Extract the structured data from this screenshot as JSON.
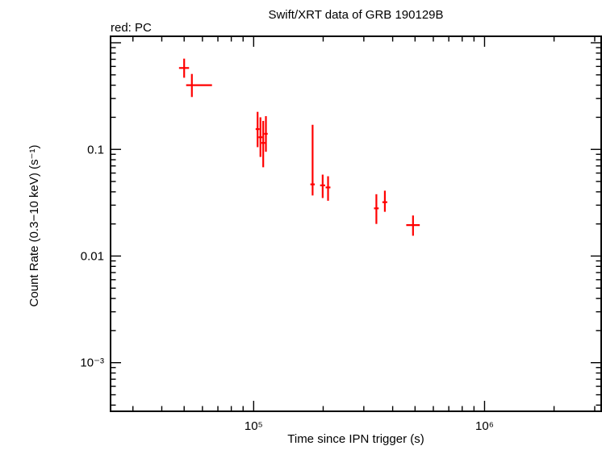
{
  "page": {
    "background": "#ffffff"
  },
  "chart_data": {
    "type": "scatter",
    "title": "Swift/XRT data of GRB 190129B",
    "mode_label": "red: PC",
    "xlabel": "Time since IPN trigger (s)",
    "ylabel": "Count Rate (0.3−10 keV) (s⁻¹)",
    "x_scale": "log",
    "y_scale": "log",
    "xlim": [
      24000,
      3200000
    ],
    "ylim": [
      0.00035,
      1.15
    ],
    "grid": false,
    "legend": "none",
    "series_name": "PC mode",
    "series_color": "#ff0000",
    "axis_color": "#000000",
    "x_ticks": [
      {
        "value": 100000,
        "label": "10⁵"
      },
      {
        "value": 1000000,
        "label": "10⁶"
      }
    ],
    "y_ticks": [
      {
        "value": 0.1,
        "label": "0.1"
      },
      {
        "value": 0.01,
        "label": "0.01"
      },
      {
        "value": 0.001,
        "label": "10⁻³"
      }
    ],
    "points": [
      {
        "x": 50000,
        "x_lo": 47500,
        "x_hi": 52500,
        "y": 0.58,
        "y_lo": 0.47,
        "y_hi": 0.71
      },
      {
        "x": 54000,
        "x_lo": 51000,
        "x_hi": 66000,
        "y": 0.4,
        "y_lo": 0.31,
        "y_hi": 0.51
      },
      {
        "x": 104000,
        "x_lo": 102000,
        "x_hi": 106000,
        "y": 0.155,
        "y_lo": 0.105,
        "y_hi": 0.225
      },
      {
        "x": 107000,
        "x_lo": 105000,
        "x_hi": 109000,
        "y": 0.13,
        "y_lo": 0.085,
        "y_hi": 0.2
      },
      {
        "x": 110000,
        "x_lo": 108000,
        "x_hi": 112000,
        "y": 0.115,
        "y_lo": 0.068,
        "y_hi": 0.185
      },
      {
        "x": 113000,
        "x_lo": 111000,
        "x_hi": 115000,
        "y": 0.14,
        "y_lo": 0.095,
        "y_hi": 0.205
      },
      {
        "x": 180000,
        "x_lo": 176000,
        "x_hi": 184000,
        "y": 0.047,
        "y_lo": 0.037,
        "y_hi": 0.17
      },
      {
        "x": 199000,
        "x_lo": 194000,
        "x_hi": 204000,
        "y": 0.046,
        "y_lo": 0.035,
        "y_hi": 0.058
      },
      {
        "x": 210000,
        "x_lo": 205000,
        "x_hi": 215000,
        "y": 0.044,
        "y_lo": 0.033,
        "y_hi": 0.056
      },
      {
        "x": 340000,
        "x_lo": 332000,
        "x_hi": 348000,
        "y": 0.028,
        "y_lo": 0.02,
        "y_hi": 0.038
      },
      {
        "x": 370000,
        "x_lo": 361000,
        "x_hi": 379000,
        "y": 0.032,
        "y_lo": 0.026,
        "y_hi": 0.041
      },
      {
        "x": 490000,
        "x_lo": 458000,
        "x_hi": 524000,
        "y": 0.0195,
        "y_lo": 0.0155,
        "y_hi": 0.024
      }
    ]
  }
}
